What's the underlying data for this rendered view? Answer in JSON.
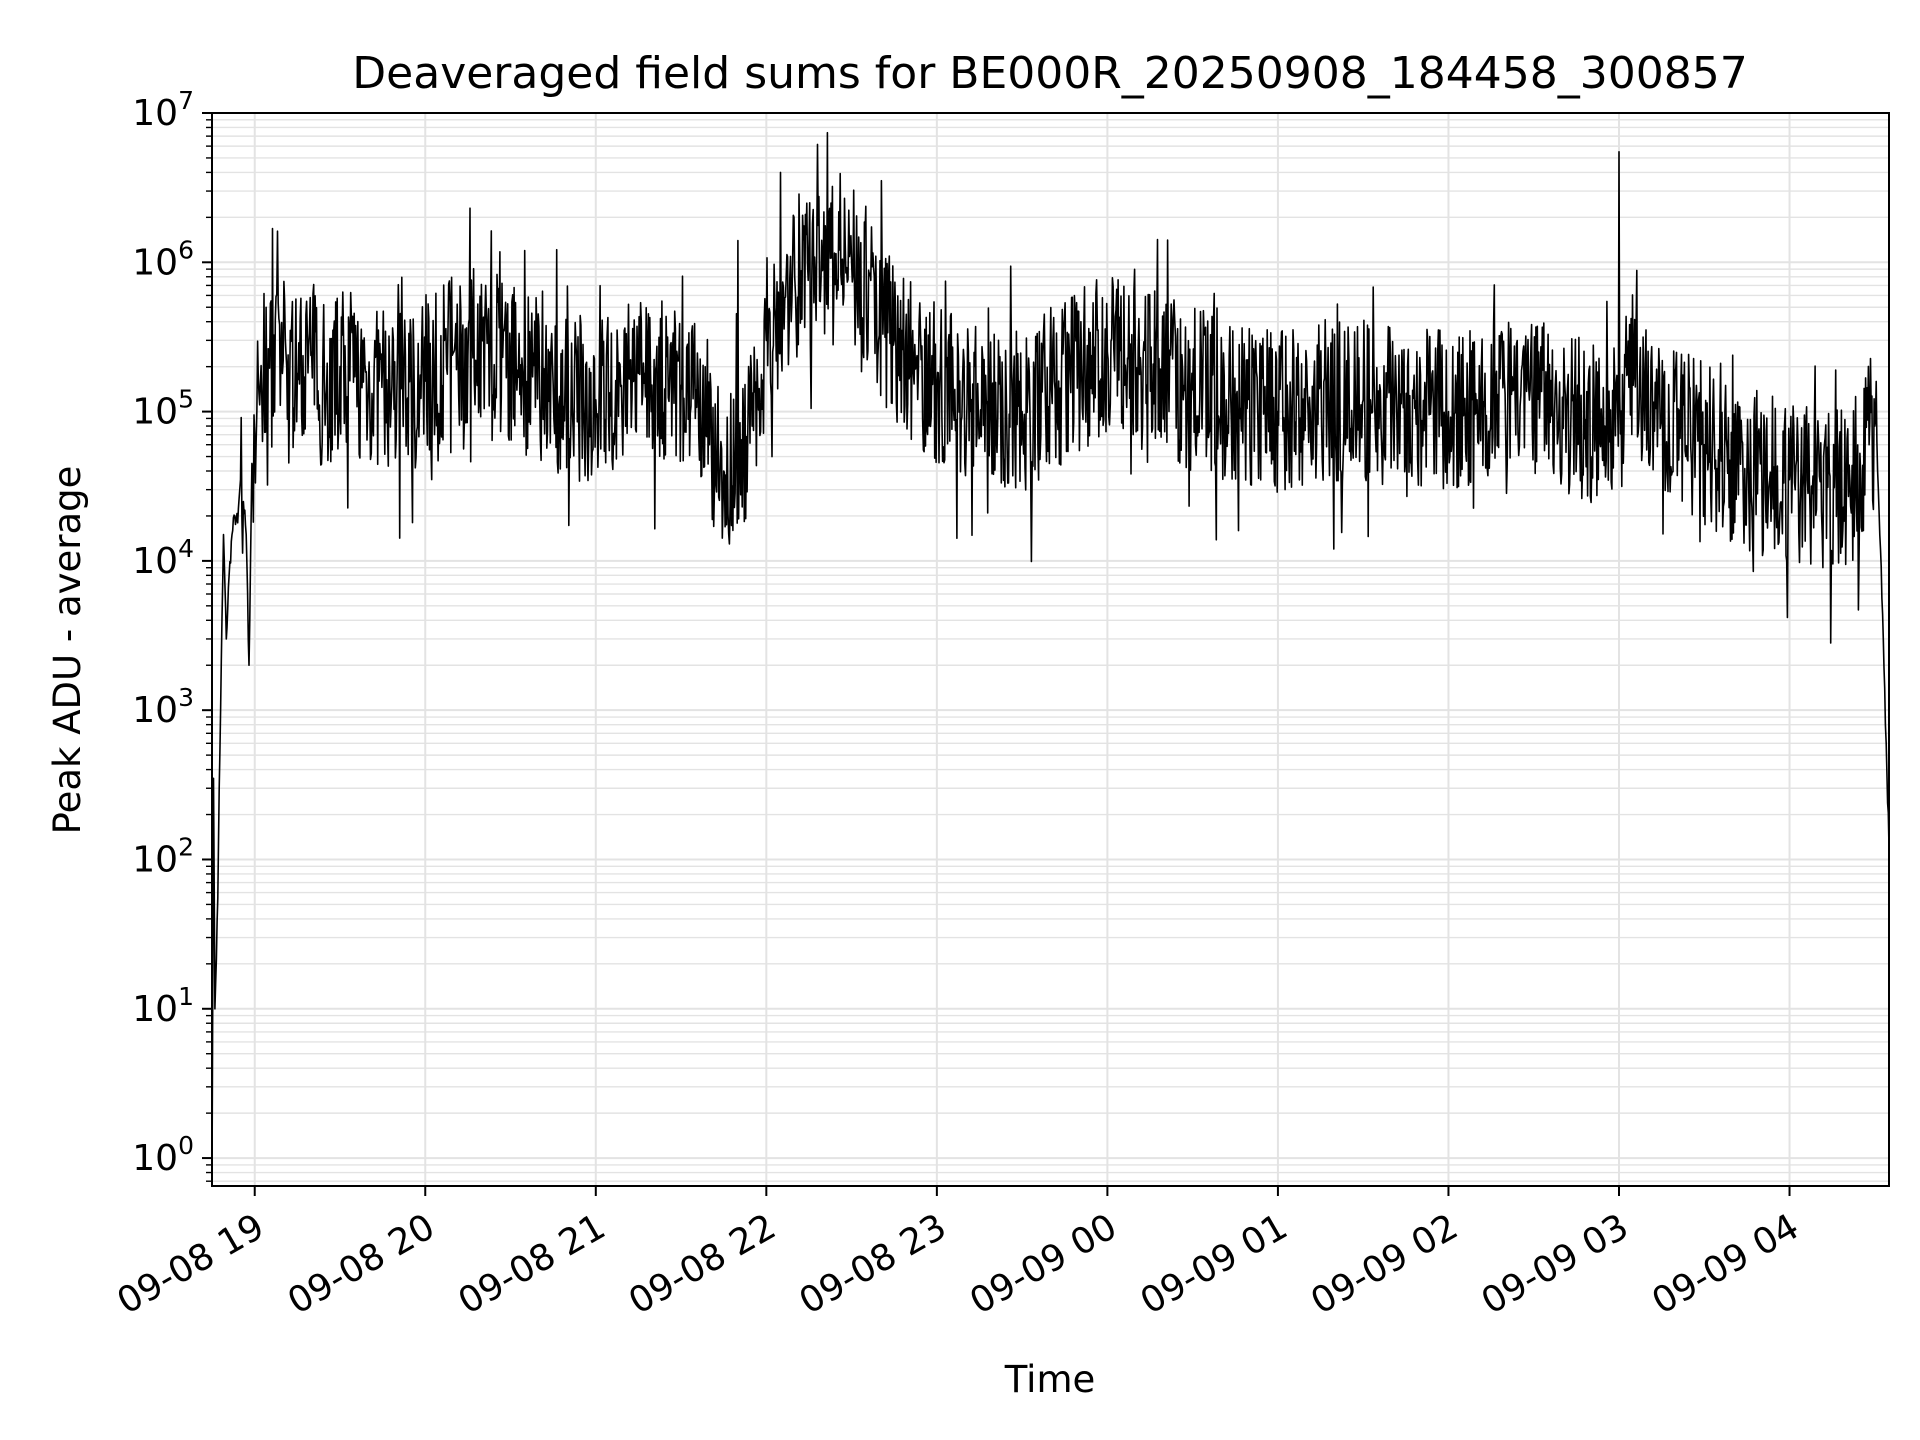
{
  "chart_data": {
    "type": "line",
    "title": "Deaveraged field sums for BE000R_20250908_184458_300857",
    "xlabel": "Time",
    "ylabel": "Peak ADU - average",
    "yscale": "log",
    "ylim": [
      0.65,
      10000000
    ],
    "xlim": [
      "2025-09-08 18:44:58",
      "2025-09-09 04:35:00"
    ],
    "grid": true,
    "line_color": "#000000",
    "grid_color": "#e3e3e3",
    "x_ticks": [
      {
        "time": "2025-09-08 19:00:00",
        "label": "09-08 19"
      },
      {
        "time": "2025-09-08 20:00:00",
        "label": "09-08 20"
      },
      {
        "time": "2025-09-08 21:00:00",
        "label": "09-08 21"
      },
      {
        "time": "2025-09-08 22:00:00",
        "label": "09-08 22"
      },
      {
        "time": "2025-09-08 23:00:00",
        "label": "09-08 23"
      },
      {
        "time": "2025-09-09 00:00:00",
        "label": "09-09 00"
      },
      {
        "time": "2025-09-09 01:00:00",
        "label": "09-09 01"
      },
      {
        "time": "2025-09-09 02:00:00",
        "label": "09-09 02"
      },
      {
        "time": "2025-09-09 03:00:00",
        "label": "09-09 03"
      },
      {
        "time": "2025-09-09 04:00:00",
        "label": "09-09 04"
      }
    ],
    "y_ticks": [
      {
        "value": 1,
        "base": "10",
        "exp": "0"
      },
      {
        "value": 10,
        "base": "10",
        "exp": "1"
      },
      {
        "value": 100,
        "base": "10",
        "exp": "2"
      },
      {
        "value": 1000,
        "base": "10",
        "exp": "3"
      },
      {
        "value": 10000,
        "base": "10",
        "exp": "4"
      },
      {
        "value": 100000,
        "base": "10",
        "exp": "5"
      },
      {
        "value": 1000000,
        "base": "10",
        "exp": "6"
      },
      {
        "value": 10000000,
        "base": "10",
        "exp": "7"
      }
    ],
    "series": [
      {
        "x": [
          "2025-09-08 18:45:00",
          "2025-09-08 18:45:30",
          "2025-09-08 18:46:00",
          "2025-09-08 18:47:00",
          "2025-09-08 18:47:30",
          "2025-09-08 18:48:00",
          "2025-09-08 18:49:00",
          "2025-09-08 18:50:00",
          "2025-09-08 18:51:00",
          "2025-09-08 18:52:00",
          "2025-09-08 18:53:00",
          "2025-09-08 18:54:00",
          "2025-09-08 18:55:00",
          "2025-09-08 18:56:00",
          "2025-09-08 18:57:00",
          "2025-09-08 18:58:00",
          "2025-09-08 18:59:00",
          "2025-09-08 19:00:00",
          "2025-09-08 19:02:00",
          "2025-09-08 19:05:00",
          "2025-09-08 19:10:00",
          "2025-09-08 19:15:00",
          "2025-09-08 19:20:00",
          "2025-09-08 19:25:00",
          "2025-09-08 19:30:00",
          "2025-09-08 19:40:00",
          "2025-09-08 19:50:00",
          "2025-09-08 20:00:00",
          "2025-09-08 20:10:00",
          "2025-09-08 20:20:00",
          "2025-09-08 20:30:00",
          "2025-09-08 20:45:00",
          "2025-09-08 21:00:00",
          "2025-09-08 21:15:00",
          "2025-09-08 21:30:00",
          "2025-09-08 21:35:00",
          "2025-09-08 21:40:00",
          "2025-09-08 21:45:00",
          "2025-09-08 21:50:00",
          "2025-09-08 21:55:00",
          "2025-09-08 22:00:00",
          "2025-09-08 22:03:00",
          "2025-09-08 22:10:00",
          "2025-09-08 22:30:00",
          "2025-09-08 22:45:00",
          "2025-09-08 23:00:00",
          "2025-09-08 23:30:00",
          "2025-09-09 00:00:00",
          "2025-09-09 00:30:00",
          "2025-09-09 01:00:00",
          "2025-09-09 01:30:00",
          "2025-09-09 02:00:00",
          "2025-09-09 02:30:00",
          "2025-09-09 02:55:00",
          "2025-09-09 03:00:00",
          "2025-09-09 03:05:00",
          "2025-09-09 03:15:00",
          "2025-09-09 03:30:00",
          "2025-09-09 03:45:00",
          "2025-09-09 04:00:00",
          "2025-09-09 04:20:00",
          "2025-09-09 04:25:00",
          "2025-09-09 04:28:00",
          "2025-09-09 04:30:00",
          "2025-09-09 04:31:00",
          "2025-09-09 04:32:00",
          "2025-09-09 04:33:00",
          "2025-09-09 04:34:00",
          "2025-09-09 04:35:00"
        ],
        "y": [
          1,
          350,
          10,
          55,
          300,
          1000,
          15000,
          3000,
          8000,
          15000,
          20000,
          18000,
          35000,
          25000,
          15000,
          2000,
          45000,
          70000,
          160000,
          200000,
          220000,
          180000,
          250000,
          120000,
          200000,
          150000,
          130000,
          160000,
          250000,
          300000,
          200000,
          150000,
          120000,
          180000,
          150000,
          90000,
          60000,
          40000,
          50000,
          80000,
          300000,
          500000,
          800000,
          1000000,
          300000,
          150000,
          100000,
          250000,
          140000,
          100000,
          120000,
          100000,
          120000,
          80000,
          100000,
          150000,
          90000,
          60000,
          40000,
          35000,
          30000,
          40000,
          60000,
          80000,
          40000,
          12000,
          3000,
          600,
          120
        ]
      }
    ],
    "spikes": [
      {
        "x": "2025-09-08 22:05:00",
        "y": 4000000
      },
      {
        "x": "2025-09-09 03:00:00",
        "y": 5500000
      },
      {
        "x": "2025-09-08 21:50:00",
        "y": 1400000
      },
      {
        "x": "2025-09-08 20:35:00",
        "y": 1200000
      }
    ]
  }
}
